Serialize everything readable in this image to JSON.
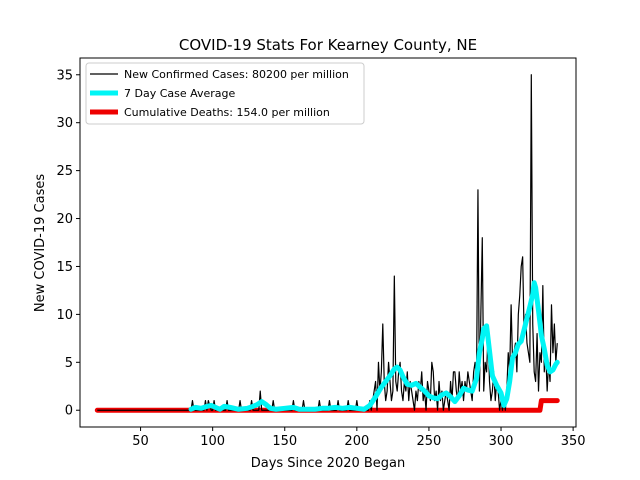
{
  "chart_data": {
    "type": "line",
    "title": "COVID-19 Stats For Kearney County, NE",
    "xlabel": "Days Since 2020 Began",
    "ylabel": "New COVID-19 Cases",
    "xlim": [
      8,
      352
    ],
    "ylim": [
      -1.75,
      36.75
    ],
    "xticks": [
      50,
      100,
      150,
      200,
      250,
      300,
      350
    ],
    "yticks": [
      0,
      5,
      10,
      15,
      20,
      25,
      30,
      35
    ],
    "grid": false,
    "legend_position": "top-left",
    "series": [
      {
        "name": "New Confirmed Cases: 80200 per million",
        "color": "#000000",
        "x": [
          20,
          85,
          86,
          87,
          94,
          95,
          96,
          97,
          99,
          100,
          101,
          102,
          109,
          110,
          111,
          118,
          119,
          120,
          126,
          127,
          128,
          132,
          133,
          134,
          135,
          141,
          142,
          143,
          155,
          156,
          157,
          162,
          163,
          164,
          173,
          174,
          175,
          180,
          181,
          182,
          186,
          187,
          188,
          193,
          194,
          195,
          199,
          200,
          201,
          208,
          209,
          210,
          212,
          213,
          214,
          215,
          216,
          217,
          218,
          219,
          220,
          221,
          222,
          223,
          224,
          225,
          226,
          227,
          228,
          229,
          230,
          231,
          232,
          233,
          234,
          235,
          236,
          237,
          238,
          239,
          240,
          241,
          242,
          243,
          244,
          245,
          246,
          247,
          248,
          249,
          250,
          251,
          252,
          253,
          254,
          255,
          256,
          257,
          258,
          259,
          260,
          261,
          262,
          263,
          264,
          265,
          266,
          267,
          268,
          269,
          270,
          271,
          272,
          273,
          274,
          275,
          276,
          277,
          278,
          279,
          280,
          281,
          282,
          283,
          284,
          285,
          286,
          287,
          288,
          289,
          290,
          291,
          292,
          293,
          294,
          295,
          296,
          297,
          298,
          299,
          300,
          301,
          302,
          303,
          304,
          305,
          306,
          307,
          308,
          309,
          310,
          311,
          312,
          313,
          314,
          315,
          316,
          317,
          318,
          319,
          320,
          321,
          322,
          323,
          324,
          325,
          326,
          327,
          328,
          329,
          330,
          331,
          332,
          333,
          334,
          335,
          336,
          337,
          338,
          339
        ],
        "y": [
          0,
          0,
          1,
          0,
          0,
          1,
          0,
          1,
          0,
          0,
          1,
          0,
          0,
          1,
          0,
          0,
          1,
          0,
          0,
          1,
          0,
          0,
          2,
          0,
          0,
          0,
          1,
          0,
          0,
          1,
          0,
          0,
          1,
          0,
          0,
          1,
          0,
          0,
          1,
          0,
          0,
          1,
          0,
          0,
          1,
          0,
          0,
          1,
          0,
          0,
          1,
          0,
          2,
          3,
          0,
          5,
          2,
          4,
          9,
          3,
          1,
          2,
          5,
          3,
          1,
          2,
          14,
          3,
          2,
          4,
          5,
          2,
          1,
          3,
          2,
          4,
          1,
          3,
          2,
          1,
          0,
          2,
          1,
          3,
          2,
          4,
          1,
          2,
          0,
          3,
          2,
          1,
          5,
          4,
          1,
          2,
          0,
          3,
          1,
          2,
          0,
          1,
          2,
          1,
          0,
          3,
          1,
          4,
          4,
          2,
          1,
          4,
          2,
          3,
          1,
          3,
          2,
          4,
          3,
          2,
          1,
          4,
          5,
          3,
          23,
          2,
          10,
          18,
          2,
          5,
          4,
          8,
          3,
          1,
          2,
          4,
          1,
          3,
          2,
          0,
          1,
          0,
          1,
          0,
          2,
          6,
          4,
          11,
          5,
          6,
          7,
          4,
          10,
          12,
          15,
          16,
          8,
          10,
          7,
          6,
          5,
          35,
          9,
          4,
          3,
          8,
          2,
          6,
          5,
          13,
          4,
          6,
          2,
          5,
          3,
          11,
          6,
          9,
          5,
          7
        ]
      },
      {
        "name": "7 Day Case Average",
        "color": "#00f5f5",
        "x": [
          85,
          88,
          92,
          96,
          99,
          102,
          105,
          108,
          112,
          118,
          124,
          128,
          131,
          134,
          137,
          140,
          144,
          150,
          156,
          160,
          165,
          171,
          176,
          180,
          185,
          190,
          195,
          200,
          205,
          209,
          213,
          217,
          220,
          223,
          226,
          228,
          230,
          232,
          235,
          238,
          241,
          244,
          247,
          250,
          253,
          256,
          259,
          262,
          265,
          268,
          271,
          274,
          277,
          280,
          283,
          285,
          287,
          288,
          290,
          292,
          294,
          297,
          300,
          302,
          304,
          306,
          308,
          310,
          312,
          314,
          316,
          318,
          320,
          322,
          323,
          324,
          326,
          328,
          330,
          332,
          334,
          336,
          338,
          339
        ],
        "y": [
          0.1,
          0.3,
          0.2,
          0.4,
          0.5,
          0.3,
          0.1,
          0.4,
          0.3,
          0.1,
          0.2,
          0.4,
          0.6,
          0.9,
          0.6,
          0.2,
          0.1,
          0.2,
          0.3,
          0.1,
          0.1,
          0.1,
          0.2,
          0.2,
          0.3,
          0.2,
          0.3,
          0.2,
          0.1,
          0.5,
          1.4,
          2.4,
          3.0,
          3.6,
          4.3,
          4.5,
          4.2,
          3.5,
          2.7,
          2.6,
          2.8,
          2.4,
          2.0,
          1.5,
          1.3,
          1.2,
          1.6,
          1.8,
          1.4,
          0.9,
          1.5,
          2.3,
          2.1,
          2.0,
          3.3,
          6.0,
          7.5,
          8.5,
          8.8,
          6.2,
          3.6,
          2.6,
          1.8,
          0.5,
          1.2,
          3.0,
          5.5,
          6.0,
          6.9,
          7.2,
          8.4,
          9.6,
          10.8,
          12.1,
          13.3,
          12.8,
          10.4,
          7.8,
          6.4,
          4.7,
          4.0,
          4.2,
          4.8,
          5.0
        ]
      },
      {
        "name": "Cumulative Deaths: 154.0 per million",
        "color": "#ee0000",
        "x": [
          20,
          326,
          327,
          328,
          339
        ],
        "y": [
          0,
          0,
          0,
          1,
          1
        ]
      }
    ]
  }
}
